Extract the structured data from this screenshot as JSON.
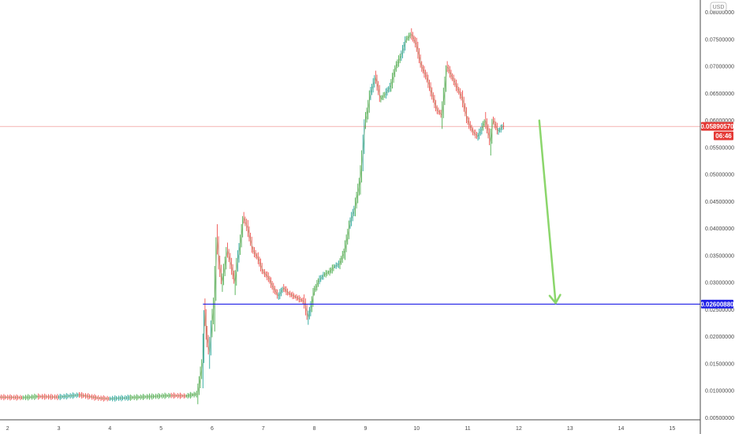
{
  "currency_label": "USD",
  "last_price_label": "0.05890570",
  "countdown_label": "06:46",
  "level_label": "0.02600880",
  "colors": {
    "up": "#26a69a",
    "up_alt": "#4caf50",
    "down": "#ef5350",
    "last_price": "#e53935",
    "level": "#2121e6",
    "arrow": "#8bd66b",
    "axis": "#4a4a4a"
  },
  "chart_data": {
    "type": "line",
    "xlim": [
      1.85,
      15.55
    ],
    "ylim": [
      0.0046,
      0.0823
    ],
    "x_ticks": [
      2,
      3,
      4,
      5,
      6,
      7,
      8,
      9,
      10,
      11,
      12,
      13,
      14,
      15
    ],
    "x_tick_labels": [
      "2",
      "3",
      "4",
      "5",
      "6",
      "7",
      "8",
      "9",
      "10",
      "11",
      "12",
      "13",
      "14",
      "15"
    ],
    "y_ticks": [
      0.005,
      0.01,
      0.015,
      0.02,
      0.025,
      0.03,
      0.035,
      0.04,
      0.045,
      0.05,
      0.055,
      0.06,
      0.065,
      0.07,
      0.075,
      0.08
    ],
    "y_tick_labels": [
      "0.00500000",
      "0.01000000",
      "0.01500000",
      "0.02000000",
      "0.02500000",
      "0.03000000",
      "0.03500000",
      "0.04000000",
      "0.04500000",
      "0.05000000",
      "0.05500000",
      "0.06000000",
      "0.06500000",
      "0.07000000",
      "0.07500000",
      "0.08000000"
    ],
    "series": [
      {
        "x": [
          1.85,
          2.3,
          2.6,
          3.0,
          3.4,
          3.8,
          4.0,
          4.4,
          4.8,
          5.2,
          5.5,
          5.72,
          5.82,
          5.86,
          5.9,
          5.95,
          6.0,
          6.05,
          6.1,
          6.15,
          6.2,
          6.3,
          6.38,
          6.45,
          6.5,
          6.55,
          6.62,
          6.7,
          6.8,
          6.9,
          7.0,
          7.1,
          7.2,
          7.3,
          7.4,
          7.5,
          7.6,
          7.7,
          7.8,
          7.88,
          7.95,
          8.0,
          8.1,
          8.2,
          8.3,
          8.4,
          8.5,
          8.6,
          8.7,
          8.8,
          8.9,
          8.95,
          9.0,
          9.05,
          9.1,
          9.2,
          9.3,
          9.4,
          9.5,
          9.6,
          9.7,
          9.8,
          9.9,
          10.0,
          10.1,
          10.2,
          10.3,
          10.4,
          10.5,
          10.6,
          10.7,
          10.8,
          10.9,
          11.0,
          11.1,
          11.2,
          11.3,
          11.35,
          11.4,
          11.45,
          11.5,
          11.6,
          11.7,
          11.72
        ],
        "y": [
          0.0088,
          0.0087,
          0.0089,
          0.0088,
          0.0092,
          0.0086,
          0.0085,
          0.0087,
          0.0089,
          0.0091,
          0.009,
          0.0094,
          0.0155,
          0.0245,
          0.02,
          0.017,
          0.0225,
          0.027,
          0.038,
          0.033,
          0.03,
          0.036,
          0.033,
          0.03,
          0.034,
          0.037,
          0.042,
          0.04,
          0.036,
          0.0345,
          0.032,
          0.031,
          0.029,
          0.0275,
          0.029,
          0.028,
          0.0275,
          0.027,
          0.0265,
          0.0235,
          0.026,
          0.0285,
          0.0305,
          0.0315,
          0.032,
          0.033,
          0.0335,
          0.036,
          0.041,
          0.044,
          0.049,
          0.054,
          0.06,
          0.062,
          0.065,
          0.068,
          0.064,
          0.065,
          0.0665,
          0.07,
          0.072,
          0.075,
          0.076,
          0.074,
          0.07,
          0.068,
          0.065,
          0.062,
          0.061,
          0.07,
          0.068,
          0.066,
          0.064,
          0.06,
          0.058,
          0.057,
          0.059,
          0.06,
          0.058,
          0.056,
          0.06,
          0.058,
          0.059,
          0.0589
        ]
      }
    ],
    "horizontal_lines": [
      {
        "label": "0.05890570",
        "y": 0.0589057
      },
      {
        "label": "0.02600880",
        "y": 0.0260088
      }
    ],
    "arrow": {
      "from": [
        12.4,
        0.06
      ],
      "to": [
        12.72,
        0.0262
      ]
    },
    "grid": false,
    "legend": "none"
  }
}
